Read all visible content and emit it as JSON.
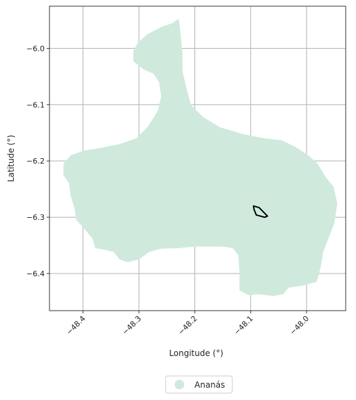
{
  "chart_data": {
    "type": "map",
    "xlabel": "Longitude (°)",
    "ylabel": "Latitude (°)",
    "xlim": [
      -48.46,
      -47.93
    ],
    "ylim": [
      -6.466,
      -5.925
    ],
    "grid": true,
    "x_ticks": [
      {
        "value": -48.4,
        "label": "−48.4"
      },
      {
        "value": -48.3,
        "label": "−48.3"
      },
      {
        "value": -48.2,
        "label": "−48.2"
      },
      {
        "value": -48.1,
        "label": "−48.1"
      },
      {
        "value": -48.0,
        "label": "−48.0"
      }
    ],
    "y_ticks": [
      {
        "value": -6.0,
        "label": "−6.0"
      },
      {
        "value": -6.1,
        "label": "−6.1"
      },
      {
        "value": -6.2,
        "label": "−6.2"
      },
      {
        "value": -6.3,
        "label": "−6.3"
      },
      {
        "value": -6.4,
        "label": "−6.4"
      }
    ],
    "region": {
      "name": "Ananás",
      "color": "#cfeadd",
      "outline": [
        [
          -48.229,
          -5.947
        ],
        [
          -48.24,
          -5.955
        ],
        [
          -48.26,
          -5.962
        ],
        [
          -48.285,
          -5.975
        ],
        [
          -48.302,
          -5.99
        ],
        [
          -48.31,
          -6.005
        ],
        [
          -48.31,
          -6.023
        ],
        [
          -48.292,
          -6.037
        ],
        [
          -48.274,
          -6.045
        ],
        [
          -48.264,
          -6.06
        ],
        [
          -48.26,
          -6.085
        ],
        [
          -48.266,
          -6.11
        ],
        [
          -48.283,
          -6.138
        ],
        [
          -48.305,
          -6.16
        ],
        [
          -48.335,
          -6.17
        ],
        [
          -48.37,
          -6.177
        ],
        [
          -48.4,
          -6.182
        ],
        [
          -48.422,
          -6.19
        ],
        [
          -48.435,
          -6.205
        ],
        [
          -48.435,
          -6.225
        ],
        [
          -48.425,
          -6.24
        ],
        [
          -48.422,
          -6.262
        ],
        [
          -48.415,
          -6.285
        ],
        [
          -48.412,
          -6.305
        ],
        [
          -48.398,
          -6.32
        ],
        [
          -48.383,
          -6.338
        ],
        [
          -48.378,
          -6.355
        ],
        [
          -48.36,
          -6.358
        ],
        [
          -48.345,
          -6.362
        ],
        [
          -48.335,
          -6.375
        ],
        [
          -48.32,
          -6.38
        ],
        [
          -48.3,
          -6.375
        ],
        [
          -48.282,
          -6.362
        ],
        [
          -48.26,
          -6.356
        ],
        [
          -48.23,
          -6.355
        ],
        [
          -48.2,
          -6.352
        ],
        [
          -48.15,
          -6.352
        ],
        [
          -48.132,
          -6.355
        ],
        [
          -48.122,
          -6.368
        ],
        [
          -48.12,
          -6.4
        ],
        [
          -48.12,
          -6.43
        ],
        [
          -48.105,
          -6.438
        ],
        [
          -48.085,
          -6.437
        ],
        [
          -48.06,
          -6.44
        ],
        [
          -48.042,
          -6.437
        ],
        [
          -48.032,
          -6.425
        ],
        [
          -48.005,
          -6.421
        ],
        [
          -47.982,
          -6.415
        ],
        [
          -47.975,
          -6.39
        ],
        [
          -47.97,
          -6.36
        ],
        [
          -47.96,
          -6.336
        ],
        [
          -47.95,
          -6.31
        ],
        [
          -47.945,
          -6.275
        ],
        [
          -47.952,
          -6.245
        ],
        [
          -47.965,
          -6.23
        ],
        [
          -47.98,
          -6.205
        ],
        [
          -47.997,
          -6.19
        ],
        [
          -48.02,
          -6.175
        ],
        [
          -48.045,
          -6.163
        ],
        [
          -48.075,
          -6.16
        ],
        [
          -48.115,
          -6.152
        ],
        [
          -48.155,
          -6.14
        ],
        [
          -48.185,
          -6.122
        ],
        [
          -48.207,
          -6.1
        ],
        [
          -48.215,
          -6.07
        ],
        [
          -48.222,
          -6.04
        ],
        [
          -48.222,
          -6.01
        ],
        [
          -48.225,
          -5.98
        ],
        [
          -48.227,
          -5.96
        ]
      ]
    },
    "marker": {
      "color": "#000000",
      "outline": [
        [
          -48.095,
          -6.28
        ],
        [
          -48.085,
          -6.283
        ],
        [
          -48.07,
          -6.298
        ],
        [
          -48.075,
          -6.3
        ],
        [
          -48.09,
          -6.296
        ],
        [
          -48.094,
          -6.286
        ]
      ]
    },
    "legend": {
      "placement": "bottom-center",
      "entries": [
        {
          "label": "Ananás",
          "color": "#cfeadd"
        }
      ]
    }
  }
}
